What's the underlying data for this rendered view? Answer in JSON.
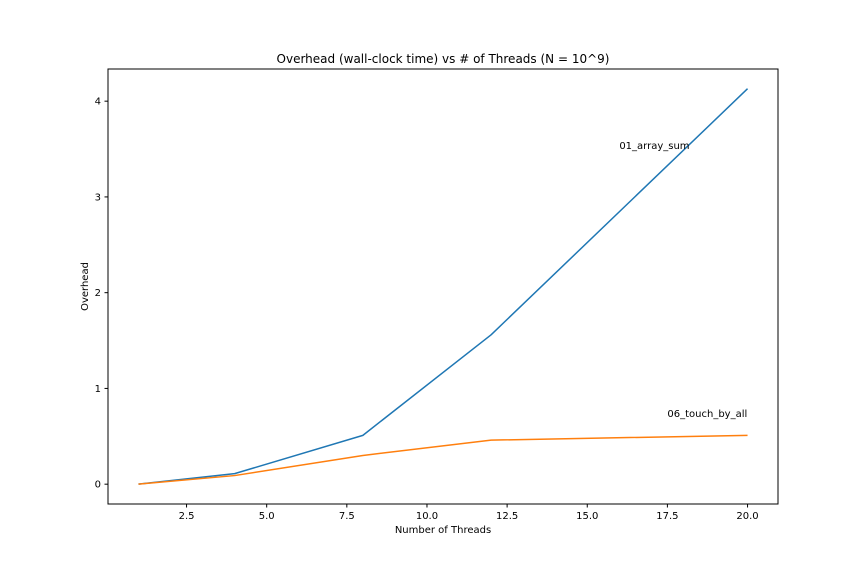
{
  "chart_data": {
    "type": "line",
    "title": "Overhead (wall-clock time) vs # of Threads (N = 10^9)",
    "xlabel": "Number of Threads",
    "ylabel": "Overhead",
    "xlim": [
      0.05,
      20.95
    ],
    "ylim": [
      -0.207,
      4.336
    ],
    "xticks": [
      2.5,
      5.0,
      7.5,
      10.0,
      12.5,
      15.0,
      17.5,
      20.0
    ],
    "xtick_labels": [
      "2.5",
      "5.0",
      "7.5",
      "10.0",
      "12.5",
      "15.0",
      "17.5",
      "20.0"
    ],
    "yticks": [
      0,
      1,
      2,
      3,
      4
    ],
    "ytick_labels": [
      "0",
      "1",
      "2",
      "3",
      "4"
    ],
    "grid": false,
    "x": [
      1,
      4,
      8,
      12,
      20
    ],
    "series": [
      {
        "values": [
          0.0,
          0.11,
          0.51,
          1.56,
          4.13
        ],
        "color": "#1f77b4"
      },
      {
        "values": [
          0.0,
          0.09,
          0.3,
          0.46,
          0.51
        ],
        "color": "#ff7f0e"
      }
    ],
    "annotations": [
      {
        "text": "01_array_sum",
        "x": 16.0,
        "y": 3.5
      },
      {
        "text": "06_touch_by_all",
        "x": 17.5,
        "y": 0.7
      }
    ]
  }
}
